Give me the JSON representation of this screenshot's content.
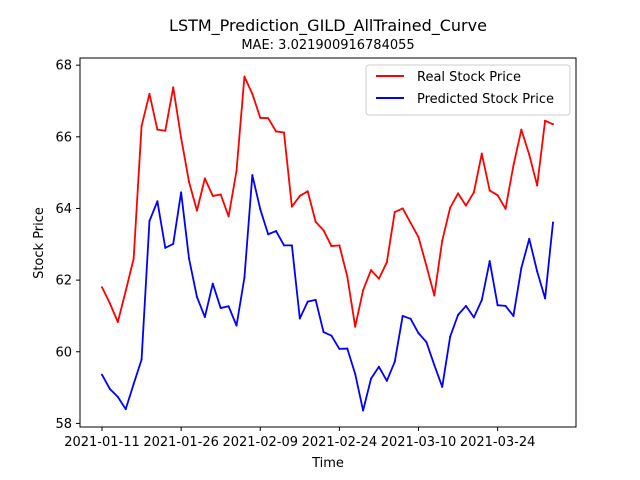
{
  "chart_data": {
    "type": "line",
    "title": "LSTM_Prediction_GILD_AllTrained_Curve",
    "subtitle": "MAE: 3.021900916784055",
    "xlabel": "Time",
    "ylabel": "Stock Price",
    "ylim": [
      57.9,
      68.2
    ],
    "yticks": [
      58,
      60,
      62,
      64,
      66,
      68
    ],
    "xticks": [
      {
        "label": "2021-01-11",
        "index": 0
      },
      {
        "label": "2021-01-26",
        "index": 10
      },
      {
        "label": "2021-02-09",
        "index": 20
      },
      {
        "label": "2021-02-24",
        "index": 30
      },
      {
        "label": "2021-03-10",
        "index": 40
      },
      {
        "label": "2021-03-24",
        "index": 50
      }
    ],
    "legend_position": "top-right",
    "grid": false,
    "series": [
      {
        "name": "Real Stock Price",
        "color": "#ff0000",
        "values": [
          61.8,
          61.35,
          60.83,
          61.7,
          62.6,
          66.3,
          67.2,
          66.2,
          66.17,
          67.38,
          65.97,
          64.74,
          63.94,
          64.84,
          64.35,
          64.39,
          63.78,
          65.05,
          67.68,
          67.2,
          66.53,
          66.52,
          66.15,
          66.12,
          64.05,
          64.35,
          64.48,
          63.63,
          63.39,
          62.95,
          62.97,
          62.1,
          60.7,
          61.72,
          62.28,
          62.04,
          62.5,
          63.9,
          64.0,
          63.6,
          63.2,
          62.4,
          61.57,
          63.1,
          64.02,
          64.42,
          64.08,
          64.45,
          65.53,
          64.5,
          64.37,
          63.99,
          65.2,
          66.2,
          65.5,
          64.64,
          66.45,
          66.35
        ]
      },
      {
        "name": "Predicted Stock Price",
        "color": "#0000ff",
        "values": [
          59.36,
          58.96,
          58.74,
          58.4,
          59.1,
          59.78,
          63.65,
          64.2,
          62.9,
          63.01,
          64.45,
          62.6,
          61.53,
          60.97,
          61.9,
          61.22,
          61.27,
          60.73,
          62.07,
          64.93,
          63.98,
          63.28,
          63.37,
          62.97,
          62.97,
          60.93,
          61.4,
          61.45,
          60.55,
          60.45,
          60.08,
          60.09,
          59.38,
          58.36,
          59.25,
          59.58,
          59.19,
          59.72,
          61.0,
          60.92,
          60.52,
          60.27,
          59.63,
          59.02,
          60.42,
          61.03,
          61.28,
          60.96,
          61.44,
          62.53,
          61.3,
          61.28,
          61.0,
          62.34,
          63.15,
          62.24,
          61.49,
          63.61
        ]
      }
    ]
  }
}
